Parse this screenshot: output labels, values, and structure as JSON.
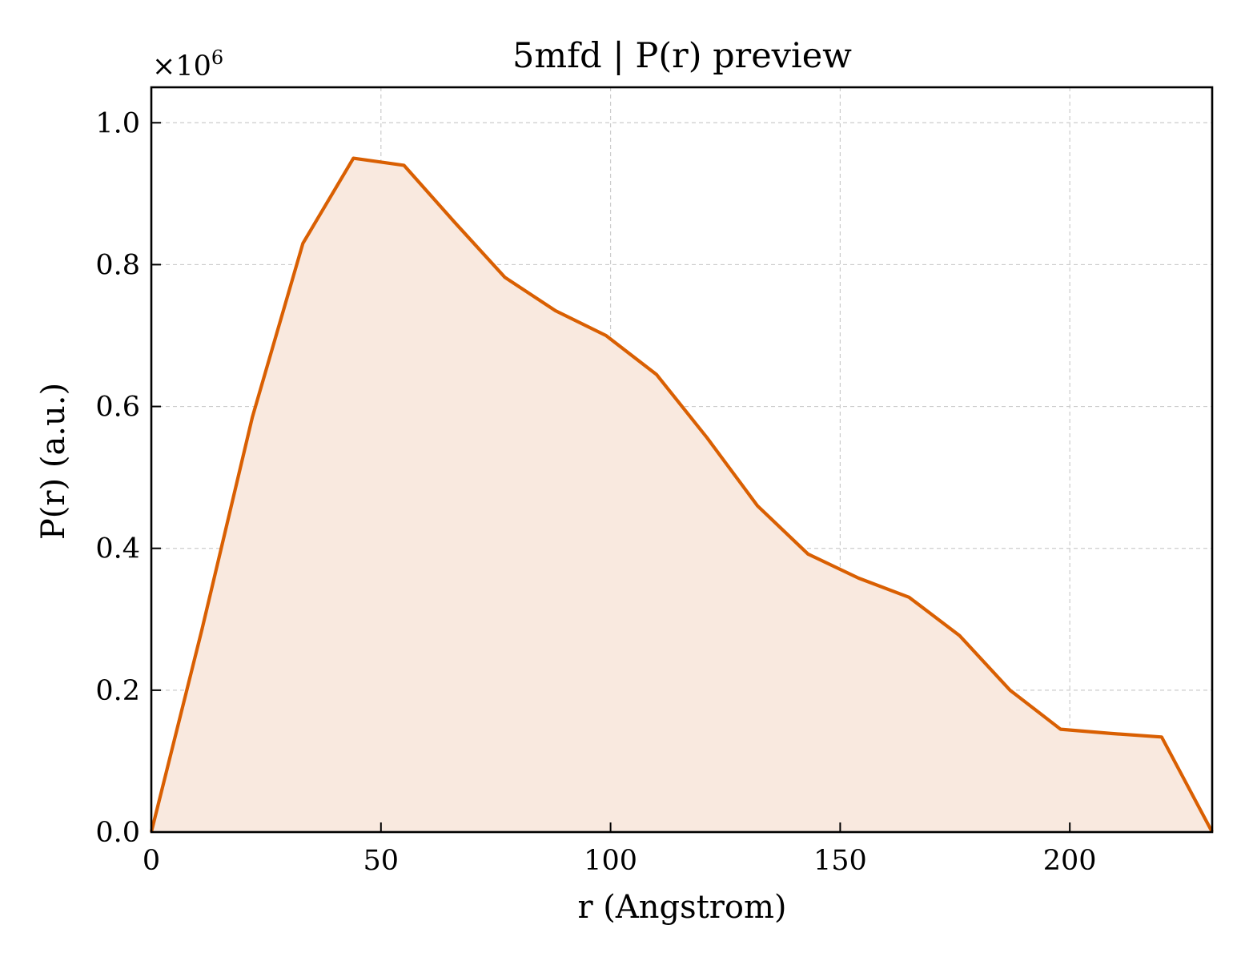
{
  "chart_data": {
    "type": "area",
    "title": "5mfd | P(r) preview",
    "xlabel": "r (Angstrom)",
    "ylabel": "P(r) (a.u.)",
    "y_multiplier_label": "×10",
    "y_multiplier_exponent": "6",
    "xlim": [
      0,
      231
    ],
    "ylim": [
      0,
      1.05
    ],
    "x_ticks": [
      0,
      50,
      100,
      150,
      200
    ],
    "x_tick_labels": [
      "0",
      "50",
      "100",
      "150",
      "200"
    ],
    "y_ticks": [
      0,
      0.2,
      0.4,
      0.6,
      0.8,
      1.0
    ],
    "y_tick_labels": [
      "0.0",
      "0.2",
      "0.4",
      "0.6",
      "0.8",
      "1.0"
    ],
    "grid": true,
    "line_color": "#d95f02",
    "fill_color": "#f9e9df",
    "series": [
      {
        "x": [
          0,
          11,
          22,
          33,
          44,
          55,
          66,
          77,
          88,
          99,
          110,
          121,
          132,
          143,
          154,
          165,
          176,
          187,
          198,
          209,
          220,
          231
        ],
        "values": [
          0.0,
          0.285,
          0.585,
          0.83,
          0.95,
          0.94,
          0.86,
          0.782,
          0.735,
          0.7,
          0.645,
          0.556,
          0.46,
          0.392,
          0.358,
          0.331,
          0.277,
          0.2,
          0.145,
          0.139,
          0.134,
          0.0
        ]
      }
    ]
  }
}
